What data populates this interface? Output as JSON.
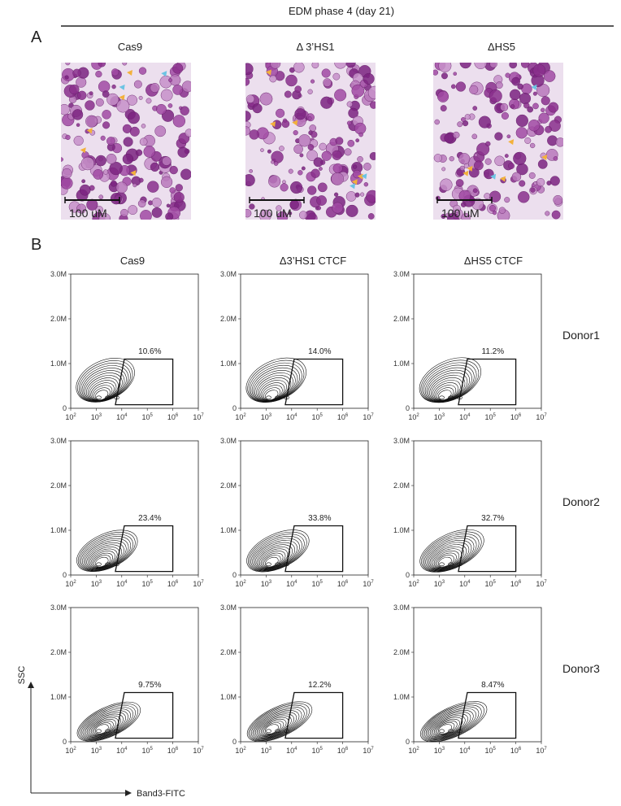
{
  "header": {
    "title": "EDM phase 4 (day 21)"
  },
  "panel_a": {
    "label": "A",
    "images": [
      {
        "title": "Cas9",
        "scale_bar": "100 uM"
      },
      {
        "title": "Δ 3’HS1",
        "scale_bar": "100 uM"
      },
      {
        "title": "ΔHS5",
        "scale_bar": "100 uM"
      }
    ]
  },
  "panel_b": {
    "label": "B",
    "columns": [
      "Cas9",
      "Δ3’HS1 CTCF",
      "ΔHS5 CTCF"
    ],
    "rows": [
      {
        "donor": "Donor1",
        "gates": [
          "10.6%",
          "14.0%",
          "11.2%"
        ]
      },
      {
        "donor": "Donor2",
        "gates": [
          "23.4%",
          "33.8%",
          "32.7%"
        ]
      },
      {
        "donor": "Donor3",
        "gates": [
          "9.75%",
          "12.2%",
          "8.47%"
        ]
      }
    ],
    "y_ticks": [
      "0",
      "1.0M",
      "2.0M",
      "3.0M"
    ],
    "x_ticks": [
      {
        "base": "10",
        "exp": "2"
      },
      {
        "base": "10",
        "exp": "3"
      },
      {
        "base": "10",
        "exp": "4"
      },
      {
        "base": "10",
        "exp": "5"
      },
      {
        "base": "10",
        "exp": "6"
      },
      {
        "base": "10",
        "exp": "7"
      }
    ],
    "y_axis_label": "SSC",
    "x_axis_label": "Band3-FITC"
  }
}
